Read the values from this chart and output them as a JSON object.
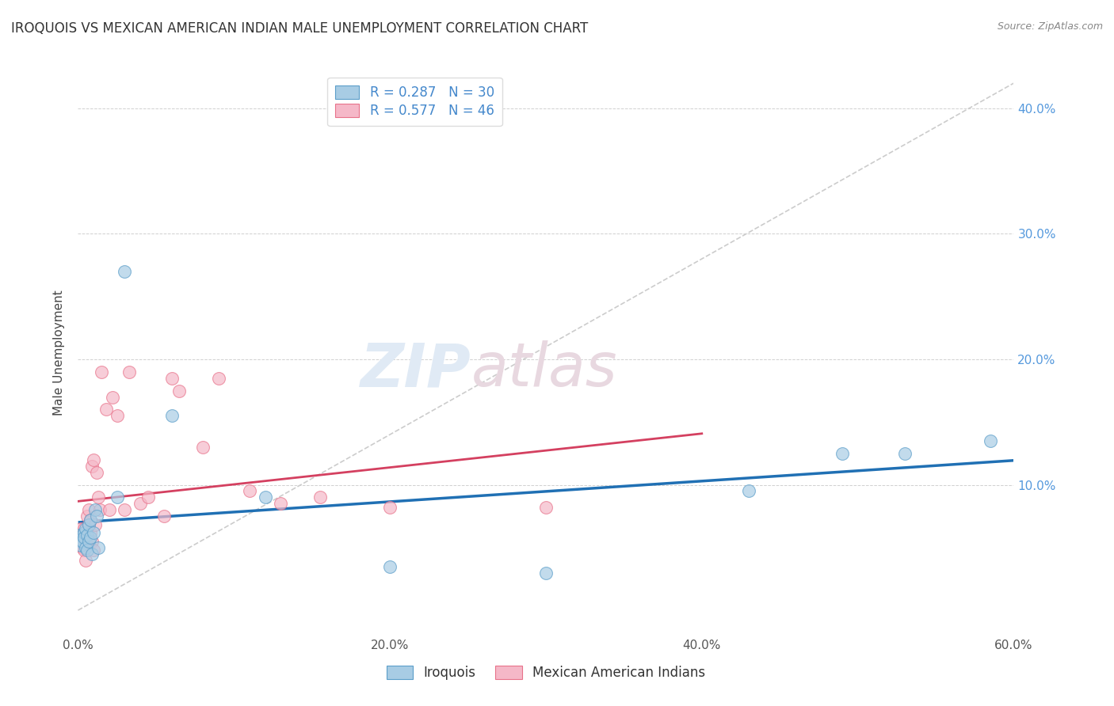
{
  "title": "IROQUOIS VS MEXICAN AMERICAN INDIAN MALE UNEMPLOYMENT CORRELATION CHART",
  "source": "Source: ZipAtlas.com",
  "ylabel": "Male Unemployment",
  "xlim": [
    0.0,
    0.6
  ],
  "ylim": [
    -0.02,
    0.43
  ],
  "xtick_vals": [
    0.0,
    0.1,
    0.2,
    0.3,
    0.4,
    0.5,
    0.6
  ],
  "xtick_labels": [
    "0.0%",
    "",
    "20.0%",
    "",
    "40.0%",
    "",
    "60.0%"
  ],
  "ytick_vals": [
    0.0,
    0.1,
    0.2,
    0.3,
    0.4
  ],
  "right_ytick_labels": [
    "10.0%",
    "20.0%",
    "30.0%",
    "40.0%"
  ],
  "legend_iroquois_label": "R = 0.287   N = 30",
  "legend_mexican_label": "R = 0.577   N = 46",
  "legend_bottom_iroquois": "Iroquois",
  "legend_bottom_mexican": "Mexican American Indians",
  "blue_color": "#a8cce4",
  "pink_color": "#f5b8c8",
  "blue_edge_color": "#5b9ec9",
  "pink_edge_color": "#e8728a",
  "blue_line_color": "#2070b4",
  "pink_line_color": "#d44060",
  "ref_line_color": "#cccccc",
  "background_color": "#ffffff",
  "grid_color": "#d0d0d0",
  "iroquois_x": [
    0.001,
    0.002,
    0.002,
    0.003,
    0.003,
    0.004,
    0.004,
    0.005,
    0.005,
    0.006,
    0.006,
    0.007,
    0.007,
    0.008,
    0.008,
    0.009,
    0.01,
    0.011,
    0.012,
    0.013,
    0.025,
    0.03,
    0.06,
    0.12,
    0.2,
    0.3,
    0.43,
    0.49,
    0.53,
    0.585
  ],
  "iroquois_y": [
    0.06,
    0.055,
    0.052,
    0.06,
    0.055,
    0.062,
    0.058,
    0.05,
    0.065,
    0.06,
    0.048,
    0.055,
    0.068,
    0.058,
    0.072,
    0.045,
    0.062,
    0.08,
    0.075,
    0.05,
    0.09,
    0.27,
    0.155,
    0.09,
    0.035,
    0.03,
    0.095,
    0.125,
    0.125,
    0.135
  ],
  "mexican_x": [
    0.001,
    0.001,
    0.002,
    0.002,
    0.003,
    0.003,
    0.003,
    0.004,
    0.004,
    0.005,
    0.005,
    0.005,
    0.006,
    0.006,
    0.006,
    0.007,
    0.007,
    0.008,
    0.008,
    0.009,
    0.009,
    0.01,
    0.01,
    0.011,
    0.012,
    0.013,
    0.014,
    0.015,
    0.018,
    0.02,
    0.022,
    0.025,
    0.03,
    0.033,
    0.04,
    0.045,
    0.055,
    0.06,
    0.065,
    0.08,
    0.09,
    0.11,
    0.13,
    0.155,
    0.2,
    0.3
  ],
  "mexican_y": [
    0.06,
    0.055,
    0.065,
    0.052,
    0.06,
    0.058,
    0.05,
    0.065,
    0.048,
    0.062,
    0.055,
    0.04,
    0.058,
    0.075,
    0.065,
    0.068,
    0.08,
    0.062,
    0.072,
    0.055,
    0.115,
    0.12,
    0.048,
    0.068,
    0.11,
    0.09,
    0.08,
    0.19,
    0.16,
    0.08,
    0.17,
    0.155,
    0.08,
    0.19,
    0.085,
    0.09,
    0.075,
    0.185,
    0.175,
    0.13,
    0.185,
    0.095,
    0.085,
    0.09,
    0.082,
    0.082
  ],
  "iroquois_r": 0.287,
  "mexican_r": 0.577,
  "iroquois_n": 30,
  "mexican_n": 46,
  "marker_size": 130
}
